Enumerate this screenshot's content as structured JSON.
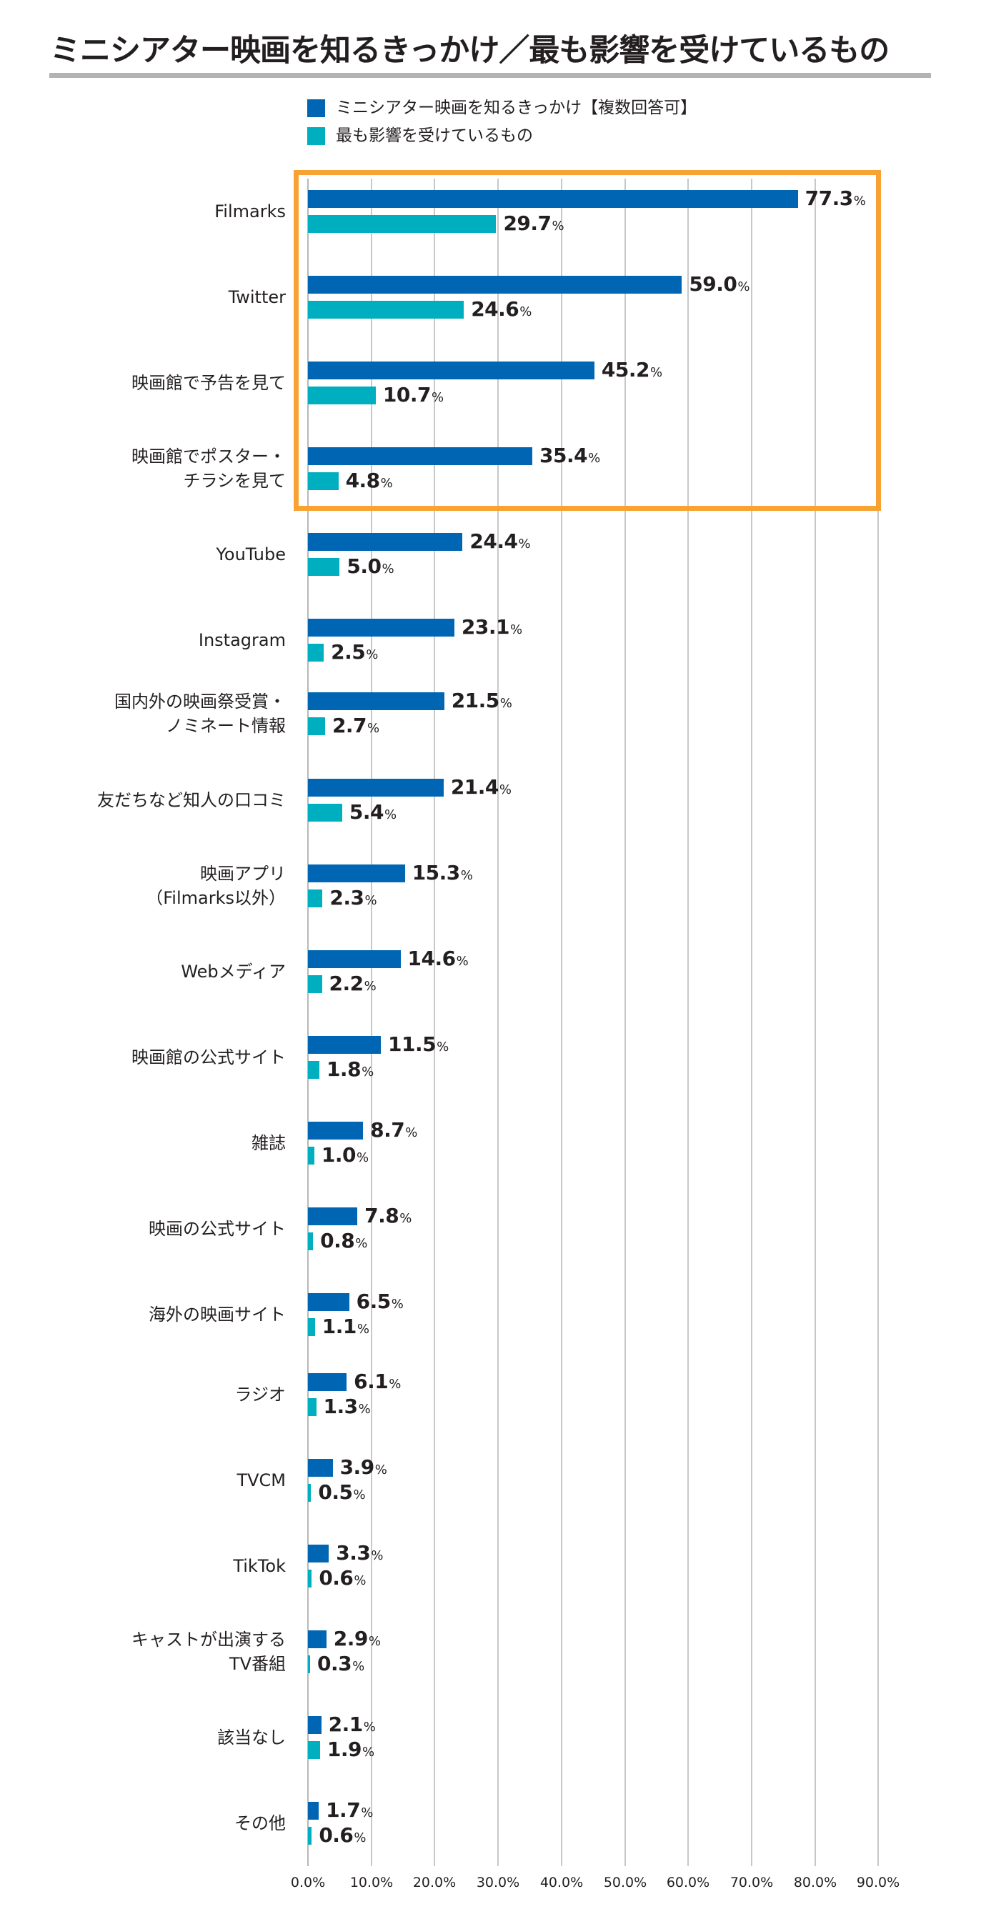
{
  "title": "ミニシアター映画を知るきっかけ／最も影響を受けているもの",
  "legend": {
    "items": [
      {
        "label": "ミニシアター映画を知るきっかけ【複数回答可】",
        "color": "#0066b3"
      },
      {
        "label": "最も影響を受けているもの",
        "color": "#00afbf"
      }
    ]
  },
  "highlight": {
    "color": "#f7a232",
    "categories_covered": 4
  },
  "chart_data": {
    "type": "bar",
    "orientation": "horizontal",
    "title": "ミニシアター映画を知るきっかけ／最も影響を受けているもの",
    "xlabel": "",
    "ylabel": "",
    "xlim": [
      0,
      90
    ],
    "x_ticks": [
      "0.0%",
      "10.0%",
      "20.0%",
      "30.0%",
      "40.0%",
      "50.0%",
      "60.0%",
      "70.0%",
      "80.0%",
      "90.0%"
    ],
    "grid": true,
    "legend_position": "top",
    "value_suffix": "%",
    "categories": [
      "Filmarks",
      "Twitter",
      "映画館で予告を見て",
      "映画館でポスター・\nチラシを見て",
      "YouTube",
      "Instagram",
      "国内外の映画祭受賞・\nノミネート情報",
      "友だちなど知人の口コミ",
      "映画アプリ\n（Filmarks以外）",
      "Webメディア",
      "映画館の公式サイト",
      "雑誌",
      "映画の公式サイト",
      "海外の映画サイト",
      "ラジオ",
      "TVCM",
      "TikTok",
      "キャストが出演する\nTV番組",
      "該当なし",
      "その他"
    ],
    "series": [
      {
        "name": "ミニシアター映画を知るきっかけ【複数回答可】",
        "color": "#0066b3",
        "values": [
          77.3,
          59.0,
          45.2,
          35.4,
          24.4,
          23.1,
          21.5,
          21.4,
          15.3,
          14.6,
          11.5,
          8.7,
          7.8,
          6.5,
          6.1,
          3.9,
          3.3,
          2.9,
          2.1,
          1.7
        ]
      },
      {
        "name": "最も影響を受けているもの",
        "color": "#00afbf",
        "values": [
          29.7,
          24.6,
          10.7,
          4.8,
          5.0,
          2.5,
          2.7,
          5.4,
          2.3,
          2.2,
          1.8,
          1.0,
          0.8,
          1.1,
          1.3,
          0.5,
          0.6,
          0.3,
          1.9,
          0.6
        ]
      }
    ]
  }
}
